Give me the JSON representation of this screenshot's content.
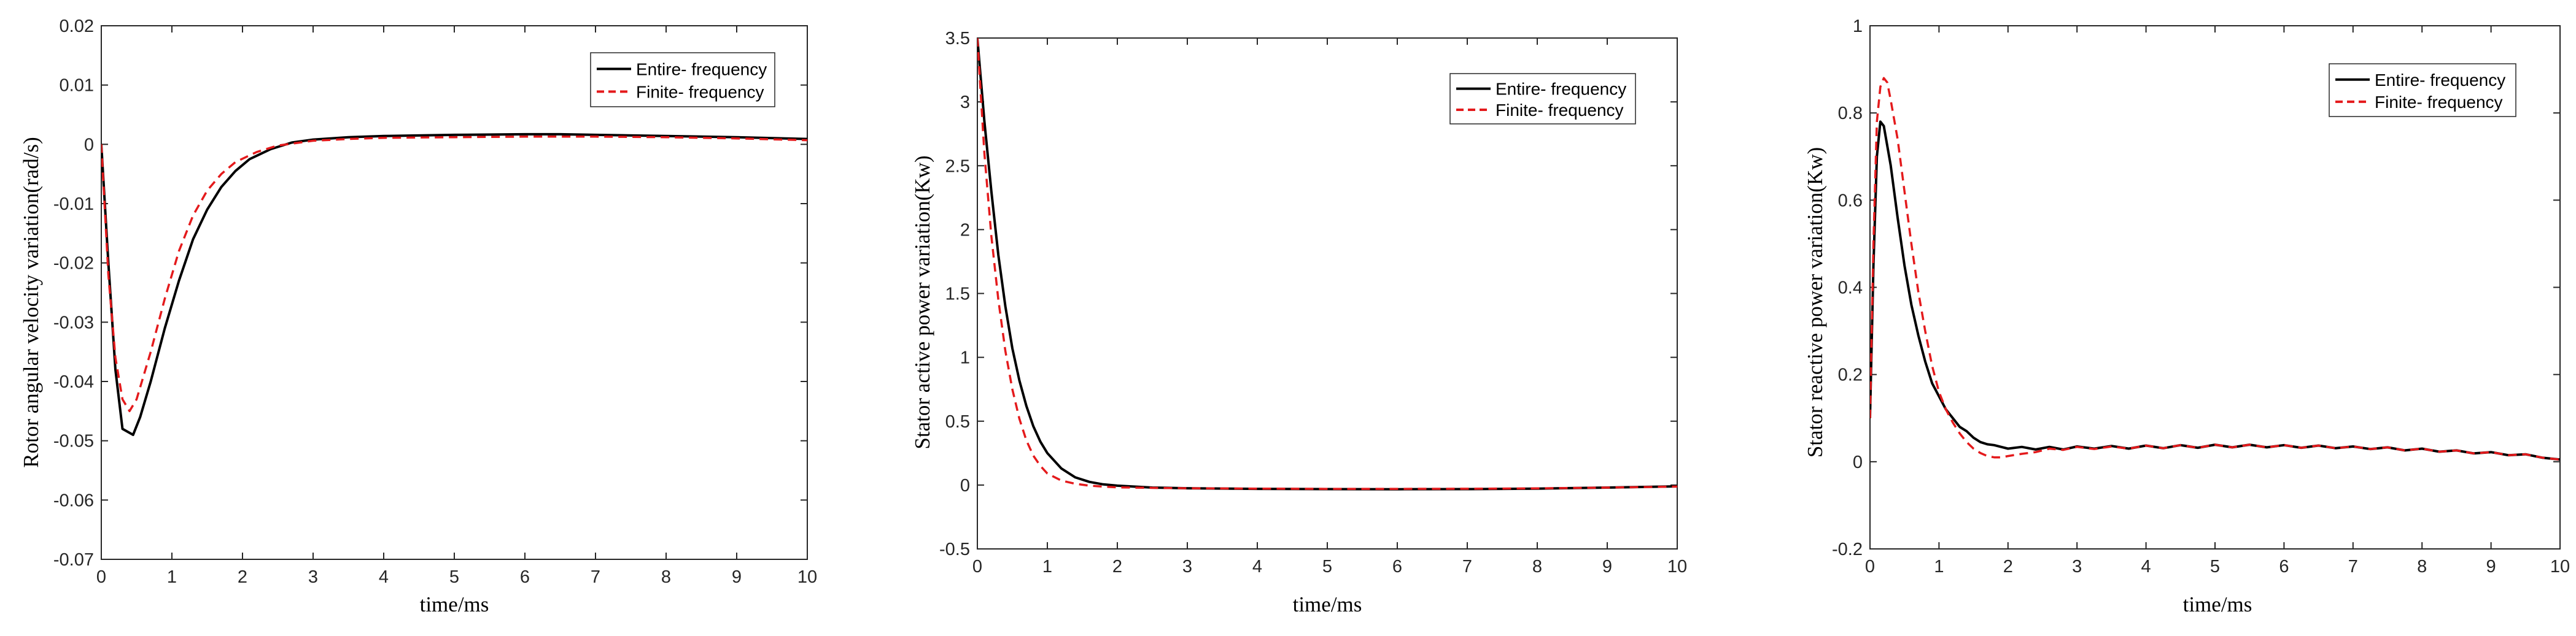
{
  "chart_data": [
    {
      "type": "line",
      "xlabel": "time/ms",
      "ylabel": "Rotor angular velocity variation(rad/s)",
      "xlim": [
        0,
        10
      ],
      "ylim": [
        -0.07,
        0.02
      ],
      "xticks": [
        0,
        1,
        2,
        3,
        4,
        5,
        6,
        7,
        8,
        9,
        10
      ],
      "yticks": [
        -0.07,
        -0.06,
        -0.05,
        -0.04,
        -0.03,
        -0.02,
        -0.01,
        0,
        0.01,
        0.02
      ],
      "ytick_labels": [
        "-0.07",
        "-0.06",
        "-0.05",
        "-0.04",
        "-0.03",
        "-0.02",
        "-0.01",
        "0",
        "0.01",
        "0.02"
      ],
      "legend_position": "top-right",
      "series": [
        {
          "name": "Entire- frequency",
          "color": "#000000",
          "dash": "solid",
          "points": [
            [
              0,
              0
            ],
            [
              0.1,
              -0.02
            ],
            [
              0.2,
              -0.038
            ],
            [
              0.3,
              -0.048
            ],
            [
              0.45,
              -0.049
            ],
            [
              0.55,
              -0.046
            ],
            [
              0.7,
              -0.04
            ],
            [
              0.9,
              -0.031
            ],
            [
              1.1,
              -0.023
            ],
            [
              1.3,
              -0.016
            ],
            [
              1.5,
              -0.011
            ],
            [
              1.7,
              -0.0072
            ],
            [
              1.9,
              -0.0045
            ],
            [
              2.1,
              -0.0025
            ],
            [
              2.4,
              -0.0008
            ],
            [
              2.7,
              0.0003
            ],
            [
              3,
              0.0008
            ],
            [
              3.5,
              0.0012
            ],
            [
              4,
              0.0014
            ],
            [
              5,
              0.0016
            ],
            [
              6,
              0.0017
            ],
            [
              6.5,
              0.0017
            ],
            [
              7,
              0.0016
            ],
            [
              8,
              0.0014
            ],
            [
              9,
              0.0012
            ],
            [
              10,
              0.0009
            ]
          ]
        },
        {
          "name": "Finite- frequency",
          "color": "#e41a1c",
          "dash": "dashed",
          "points": [
            [
              0,
              0
            ],
            [
              0.1,
              -0.022
            ],
            [
              0.2,
              -0.036
            ],
            [
              0.3,
              -0.043
            ],
            [
              0.4,
              -0.045
            ],
            [
              0.5,
              -0.043
            ],
            [
              0.7,
              -0.035
            ],
            [
              0.9,
              -0.026
            ],
            [
              1.1,
              -0.018
            ],
            [
              1.3,
              -0.012
            ],
            [
              1.5,
              -0.0078
            ],
            [
              1.7,
              -0.005
            ],
            [
              1.9,
              -0.003
            ],
            [
              2.2,
              -0.0013
            ],
            [
              2.5,
              -0.0002
            ],
            [
              3,
              0.0006
            ],
            [
              3.5,
              0.0009
            ],
            [
              4,
              0.0011
            ],
            [
              5,
              0.0012
            ],
            [
              6,
              0.0013
            ],
            [
              7,
              0.0013
            ],
            [
              8,
              0.0012
            ],
            [
              9,
              0.001
            ],
            [
              10,
              0.0007
            ]
          ]
        }
      ]
    },
    {
      "type": "line",
      "xlabel": "time/ms",
      "ylabel": "Stator active power variation(Kw)",
      "xlim": [
        0,
        10
      ],
      "ylim": [
        -0.5,
        3.5
      ],
      "xticks": [
        0,
        1,
        2,
        3,
        4,
        5,
        6,
        7,
        8,
        9,
        10
      ],
      "yticks": [
        -0.5,
        0,
        0.5,
        1,
        1.5,
        2,
        2.5,
        3,
        3.5
      ],
      "ytick_labels": [
        "-0.5",
        "0",
        "0.5",
        "1",
        "1.5",
        "2",
        "2.5",
        "3",
        "3.5"
      ],
      "legend_position": "top-right",
      "series": [
        {
          "name": "Entire- frequency",
          "color": "#000000",
          "dash": "solid",
          "points": [
            [
              0,
              3.5
            ],
            [
              0.1,
              2.85
            ],
            [
              0.2,
              2.3
            ],
            [
              0.3,
              1.8
            ],
            [
              0.4,
              1.4
            ],
            [
              0.5,
              1.07
            ],
            [
              0.6,
              0.82
            ],
            [
              0.7,
              0.62
            ],
            [
              0.8,
              0.46
            ],
            [
              0.9,
              0.34
            ],
            [
              1,
              0.25
            ],
            [
              1.2,
              0.13
            ],
            [
              1.4,
              0.06
            ],
            [
              1.6,
              0.025
            ],
            [
              1.8,
              0.005
            ],
            [
              2,
              -0.005
            ],
            [
              2.5,
              -0.02
            ],
            [
              3,
              -0.025
            ],
            [
              4,
              -0.03
            ],
            [
              5,
              -0.032
            ],
            [
              6,
              -0.033
            ],
            [
              7,
              -0.032
            ],
            [
              8,
              -0.028
            ],
            [
              9,
              -0.02
            ],
            [
              10,
              -0.01
            ]
          ]
        },
        {
          "name": "Finite- frequency",
          "color": "#e41a1c",
          "dash": "dashed",
          "points": [
            [
              0,
              3.5
            ],
            [
              0.1,
              2.6
            ],
            [
              0.2,
              1.95
            ],
            [
              0.3,
              1.45
            ],
            [
              0.4,
              1.05
            ],
            [
              0.5,
              0.75
            ],
            [
              0.6,
              0.52
            ],
            [
              0.7,
              0.35
            ],
            [
              0.8,
              0.23
            ],
            [
              0.9,
              0.15
            ],
            [
              1,
              0.09
            ],
            [
              1.2,
              0.035
            ],
            [
              1.4,
              0.01
            ],
            [
              1.6,
              -0.005
            ],
            [
              1.8,
              -0.012
            ],
            [
              2,
              -0.018
            ],
            [
              2.5,
              -0.022
            ],
            [
              3,
              -0.025
            ],
            [
              4,
              -0.028
            ],
            [
              5,
              -0.03
            ],
            [
              6,
              -0.03
            ],
            [
              7,
              -0.029
            ],
            [
              8,
              -0.026
            ],
            [
              9,
              -0.02
            ],
            [
              10,
              -0.012
            ]
          ]
        }
      ]
    },
    {
      "type": "line",
      "xlabel": "time/ms",
      "ylabel": "Stator reactive power variation(Kw)",
      "xlim": [
        0,
        10
      ],
      "ylim": [
        -0.2,
        1
      ],
      "xticks": [
        0,
        1,
        2,
        3,
        4,
        5,
        6,
        7,
        8,
        9,
        10
      ],
      "yticks": [
        -0.2,
        0,
        0.2,
        0.4,
        0.6,
        0.8,
        1
      ],
      "ytick_labels": [
        "-0.2",
        "0",
        "0.2",
        "0.4",
        "0.6",
        "0.8",
        "1"
      ],
      "legend_position": "top-right",
      "series": [
        {
          "name": "Entire- frequency",
          "color": "#000000",
          "dash": "solid",
          "points": [
            [
              0,
              0.1
            ],
            [
              0.05,
              0.45
            ],
            [
              0.1,
              0.7
            ],
            [
              0.15,
              0.78
            ],
            [
              0.2,
              0.77
            ],
            [
              0.3,
              0.68
            ],
            [
              0.4,
              0.56
            ],
            [
              0.5,
              0.45
            ],
            [
              0.6,
              0.36
            ],
            [
              0.7,
              0.29
            ],
            [
              0.8,
              0.23
            ],
            [
              0.9,
              0.18
            ],
            [
              1,
              0.15
            ],
            [
              1.1,
              0.12
            ],
            [
              1.2,
              0.1
            ],
            [
              1.3,
              0.08
            ],
            [
              1.4,
              0.07
            ],
            [
              1.5,
              0.055
            ],
            [
              1.6,
              0.045
            ],
            [
              1.7,
              0.04
            ],
            [
              1.8,
              0.038
            ],
            [
              1.9,
              0.034
            ],
            [
              2,
              0.03
            ],
            [
              2.2,
              0.034
            ],
            [
              2.4,
              0.028
            ],
            [
              2.6,
              0.034
            ],
            [
              2.8,
              0.028
            ],
            [
              3,
              0.035
            ],
            [
              3.25,
              0.03
            ],
            [
              3.5,
              0.036
            ],
            [
              3.75,
              0.03
            ],
            [
              4,
              0.037
            ],
            [
              4.25,
              0.031
            ],
            [
              4.5,
              0.038
            ],
            [
              4.75,
              0.032
            ],
            [
              5,
              0.039
            ],
            [
              5.25,
              0.033
            ],
            [
              5.5,
              0.039
            ],
            [
              5.75,
              0.033
            ],
            [
              6,
              0.038
            ],
            [
              6.25,
              0.032
            ],
            [
              6.5,
              0.037
            ],
            [
              6.75,
              0.031
            ],
            [
              7,
              0.035
            ],
            [
              7.25,
              0.029
            ],
            [
              7.5,
              0.033
            ],
            [
              7.75,
              0.026
            ],
            [
              8,
              0.03
            ],
            [
              8.25,
              0.023
            ],
            [
              8.5,
              0.026
            ],
            [
              8.75,
              0.019
            ],
            [
              9,
              0.022
            ],
            [
              9.25,
              0.015
            ],
            [
              9.5,
              0.017
            ],
            [
              9.75,
              0.009
            ],
            [
              10,
              0.005
            ]
          ]
        },
        {
          "name": "Finite- frequency",
          "color": "#e41a1c",
          "dash": "dashed",
          "points": [
            [
              0,
              0.1
            ],
            [
              0.05,
              0.5
            ],
            [
              0.1,
              0.78
            ],
            [
              0.15,
              0.86
            ],
            [
              0.2,
              0.88
            ],
            [
              0.25,
              0.87
            ],
            [
              0.3,
              0.83
            ],
            [
              0.4,
              0.74
            ],
            [
              0.5,
              0.62
            ],
            [
              0.6,
              0.5
            ],
            [
              0.7,
              0.39
            ],
            [
              0.8,
              0.3
            ],
            [
              0.9,
              0.22
            ],
            [
              1,
              0.16
            ],
            [
              1.1,
              0.12
            ],
            [
              1.2,
              0.09
            ],
            [
              1.3,
              0.065
            ],
            [
              1.4,
              0.045
            ],
            [
              1.5,
              0.03
            ],
            [
              1.6,
              0.02
            ],
            [
              1.7,
              0.013
            ],
            [
              1.8,
              0.01
            ],
            [
              1.9,
              0.01
            ],
            [
              2,
              0.013
            ],
            [
              2.2,
              0.018
            ],
            [
              2.4,
              0.022
            ],
            [
              2.6,
              0.03
            ],
            [
              2.8,
              0.027
            ],
            [
              3,
              0.034
            ],
            [
              3.25,
              0.029
            ],
            [
              3.5,
              0.035
            ],
            [
              3.75,
              0.03
            ],
            [
              4,
              0.037
            ],
            [
              4.25,
              0.031
            ],
            [
              4.5,
              0.038
            ],
            [
              4.75,
              0.032
            ],
            [
              5,
              0.039
            ],
            [
              5.25,
              0.033
            ],
            [
              5.5,
              0.039
            ],
            [
              5.75,
              0.033
            ],
            [
              6,
              0.038
            ],
            [
              6.25,
              0.032
            ],
            [
              6.5,
              0.037
            ],
            [
              6.75,
              0.031
            ],
            [
              7,
              0.035
            ],
            [
              7.25,
              0.029
            ],
            [
              7.5,
              0.033
            ],
            [
              7.75,
              0.026
            ],
            [
              8,
              0.03
            ],
            [
              8.25,
              0.023
            ],
            [
              8.5,
              0.026
            ],
            [
              8.75,
              0.019
            ],
            [
              9,
              0.022
            ],
            [
              9.25,
              0.015
            ],
            [
              9.5,
              0.017
            ],
            [
              9.75,
              0.009
            ],
            [
              10,
              0.005
            ]
          ]
        }
      ]
    }
  ]
}
